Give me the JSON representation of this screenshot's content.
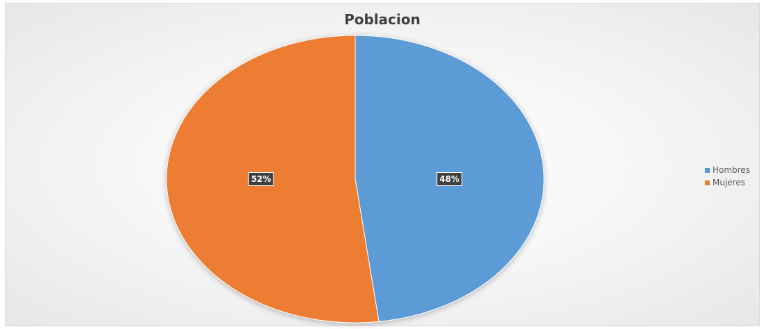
{
  "chart_data": {
    "type": "pie",
    "title": "Poblacion",
    "categories": [
      "Hombres",
      "Mujeres"
    ],
    "values": [
      48,
      52
    ],
    "data_labels": [
      "48%",
      "52%"
    ],
    "colors": [
      "#5b9bd5",
      "#ed7d31"
    ],
    "legend_position": "right"
  }
}
